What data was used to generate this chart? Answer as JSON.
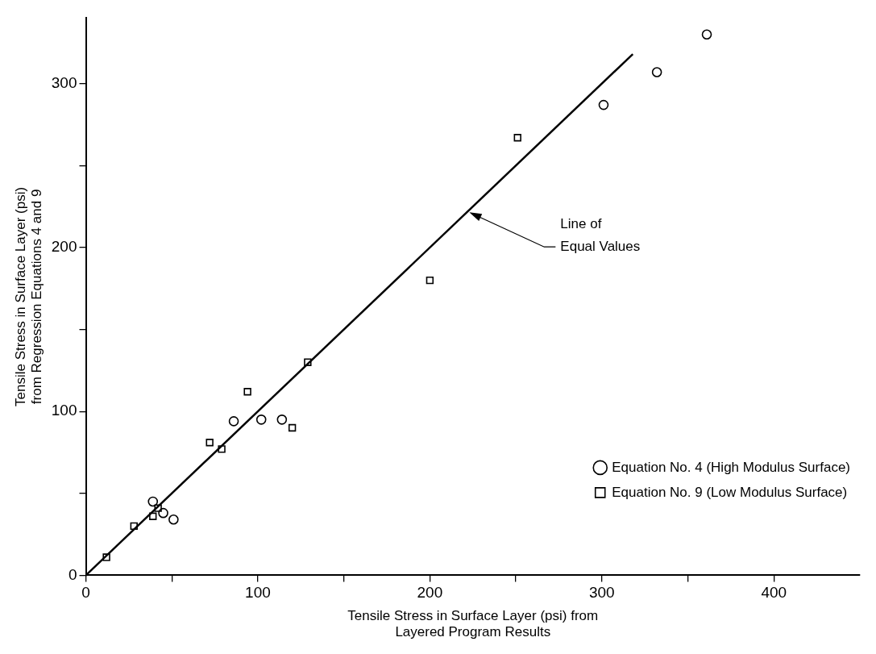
{
  "chart_data": {
    "type": "scatter",
    "xlabel": "Tensile Stress in Surface Layer (psi) from\nLayered Program Results",
    "ylabel": "Tensile Stress in Surface Layer (psi)\nfrom Regression Equations 4 and 9",
    "xlim": [
      0,
      450
    ],
    "ylim": [
      0,
      340
    ],
    "xticks": [
      0,
      {
        "value": 50,
        "label": null
      },
      100,
      {
        "value": 150,
        "label": null
      },
      200,
      {
        "value": 250,
        "label": null
      },
      300,
      {
        "value": 350,
        "label": null
      },
      400
    ],
    "yticks": [
      0,
      {
        "value": 50,
        "label": null
      },
      100,
      {
        "value": 150,
        "label": null
      },
      200,
      {
        "value": 250,
        "label": null
      },
      300
    ],
    "grid": false,
    "legend": "bottom right",
    "series": [
      {
        "name": "Equation No. 4 (High Modulus Surface)",
        "color": "#000000",
        "marker": "circle",
        "x": [
          39,
          45,
          51,
          86,
          102,
          114,
          301,
          332,
          361
        ],
        "values": [
          45,
          38,
          34,
          94,
          95,
          95,
          287,
          307,
          330
        ]
      },
      {
        "name": "Equation No. 9 (Low Modulus Surface)",
        "color": "#000000",
        "marker": "square",
        "x": [
          12,
          28,
          39,
          42,
          72,
          79,
          94,
          120,
          129,
          200,
          251
        ],
        "values": [
          11,
          30,
          36,
          41,
          81,
          77,
          112,
          90,
          130,
          180,
          267
        ]
      },
      {
        "type": "line",
        "color": "#000000",
        "marker": "none",
        "line_style": "solid",
        "x": [
          0,
          318
        ],
        "values": [
          0,
          318
        ]
      }
    ],
    "annotations": [
      {
        "text": "Line of\nEqual Values",
        "x": 222,
        "y": 222
      }
    ]
  }
}
